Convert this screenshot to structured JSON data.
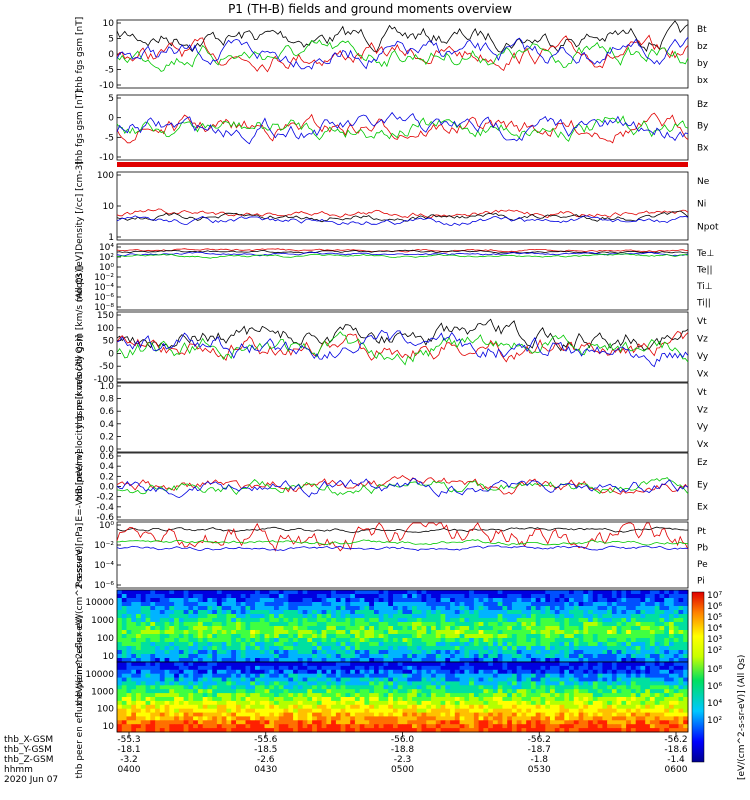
{
  "title": "P1 (TH-B) fields and ground moments overview",
  "colors": {
    "black": "#000000",
    "red": "#e00000",
    "green": "#00c800",
    "blue": "#0000e0"
  },
  "colorbar": {
    "label": "[eV/(cm^2-s-sr-eV)] (All Qs)"
  },
  "chart_data": [
    {
      "type": "line",
      "id": "fgs",
      "ylabel": "thb fgs gsm [nT]",
      "ylim": [
        -10,
        10
      ],
      "ticks": [
        "10",
        "5",
        "0",
        "-5",
        "-10"
      ],
      "grid": false,
      "legend_position": "right",
      "series": [
        {
          "name": "Bt",
          "color": "black"
        },
        {
          "name": "bz",
          "color": "red"
        },
        {
          "name": "by",
          "color": "green"
        },
        {
          "name": "bx",
          "color": "blue"
        }
      ]
    },
    {
      "type": "line",
      "id": "fgs2",
      "ylabel": "thb fgs gsm [nT]",
      "ylim": [
        -10,
        10
      ],
      "ticks": [
        "5",
        "0",
        "-5",
        "-10"
      ],
      "grid": false,
      "legend_position": "right",
      "series": [
        {
          "name": "Bz",
          "color": "red"
        },
        {
          "name": "By",
          "color": "green"
        },
        {
          "name": "Bx",
          "color": "blue"
        }
      ]
    },
    {
      "type": "line",
      "id": "density",
      "ylabel": "Density [/cc] [cm-3]",
      "scale": "log",
      "ylim": [
        0.01,
        200
      ],
      "ticks": [
        "100",
        "10",
        "1"
      ],
      "legend_position": "right",
      "series": [
        {
          "name": "Ne",
          "color": "red"
        },
        {
          "name": "Ni",
          "color": "black"
        },
        {
          "name": "Npot",
          "color": "blue"
        }
      ]
    },
    {
      "type": "line",
      "id": "temp",
      "ylabel": "moqt3 [eV]",
      "scale": "log",
      "ticks": [
        "10⁴",
        "10²",
        "10⁰",
        "10⁻²",
        "10⁻⁴",
        "10⁻⁶",
        "10⁻⁸"
      ],
      "legend_position": "right",
      "series": [
        {
          "name": "Te⊥",
          "color": "red"
        },
        {
          "name": "Te||",
          "color": "black"
        },
        {
          "name": "Ti⊥",
          "color": "blue"
        },
        {
          "name": "Ti||",
          "color": "green"
        }
      ]
    },
    {
      "type": "line",
      "id": "peir_vel",
      "ylabel": "thb peir velocity gsm [km/s (All Qs)]",
      "ylim": [
        -100,
        150
      ],
      "ticks": [
        "150",
        "100",
        "50",
        "0",
        "-50",
        "-100"
      ],
      "legend_position": "right",
      "series": [
        {
          "name": "Vt",
          "color": "black"
        },
        {
          "name": "Vz",
          "color": "red"
        },
        {
          "name": "Vy",
          "color": "green"
        },
        {
          "name": "Vx",
          "color": "blue"
        }
      ]
    },
    {
      "type": "line",
      "id": "peer_vel",
      "ylabel": "thb peer velocity gsm [km/s (All Qs)]",
      "ylim": [
        0,
        1
      ],
      "ticks": [
        "1.0",
        "0.8",
        "0.6",
        "0.4",
        "0.2",
        "0.0"
      ],
      "legend_position": "right",
      "series": [
        {
          "name": "Vt",
          "color": "black"
        },
        {
          "name": "Vz",
          "color": "red"
        },
        {
          "name": "Vy",
          "color": "green"
        },
        {
          "name": "Vx",
          "color": "blue"
        }
      ]
    },
    {
      "type": "line",
      "id": "efield",
      "ylabel": "E=-VxB [mV/m]",
      "ylim": [
        -0.6,
        0.6
      ],
      "ticks": [
        "0.6",
        "0.4",
        "0.2",
        "0.0",
        "-0.2",
        "-0.4",
        "-0.6"
      ],
      "legend_position": "right",
      "series": [
        {
          "name": "Ez",
          "color": "red"
        },
        {
          "name": "Ey",
          "color": "green"
        },
        {
          "name": "Ex",
          "color": "blue"
        }
      ]
    },
    {
      "type": "line",
      "id": "pressure",
      "ylabel": "Pressure [nPa]",
      "scale": "log",
      "ylim": [
        1e-06,
        1
      ],
      "ticks": [
        "10⁰",
        "10⁻²",
        "10⁻⁴",
        "10⁻⁶"
      ],
      "legend_position": "right",
      "series": [
        {
          "name": "Pt",
          "color": "black"
        },
        {
          "name": "Pb",
          "color": "red"
        },
        {
          "name": "Pe",
          "color": "green"
        },
        {
          "name": "Pi",
          "color": "blue"
        }
      ]
    },
    {
      "type": "heatmap",
      "id": "peir_en",
      "ylabel": "thb peir en eflux eV/(cm^2-s-sr-eV)",
      "scale": "log",
      "ticks": [
        "10000",
        "1000",
        "100",
        "10"
      ],
      "colorbar_ticks": [
        "10⁷",
        "10⁶",
        "10⁵",
        "10⁴",
        "10³",
        "10²"
      ]
    },
    {
      "type": "heatmap",
      "id": "peer_en",
      "ylabel": "thb peer en eflux eV/(cm^2-s-sr-eV)",
      "scale": "log",
      "ticks": [
        "10000",
        "1000",
        "100",
        "10"
      ],
      "colorbar_ticks": [
        "10⁸",
        "10⁶",
        "10⁴",
        "10²"
      ]
    }
  ],
  "x_axis": {
    "row_labels": [
      "thb_X-GSM",
      "thb_Y-GSM",
      "thb_Z-GSM",
      "hhmm",
      "2020 Jun 07"
    ],
    "columns": [
      {
        "x": "-55.3",
        "y": "-18.1",
        "z": "-3.2",
        "t": "0400"
      },
      {
        "x": "-55.6",
        "y": "-18.5",
        "z": "-2.6",
        "t": "0430"
      },
      {
        "x": "-56.0",
        "y": "-18.8",
        "z": "-2.3",
        "t": "0500"
      },
      {
        "x": "-56.2",
        "y": "-18.7",
        "z": "-1.8",
        "t": "0530"
      },
      {
        "x": "-56.2",
        "y": "-18.6",
        "z": "-1.4",
        "t": "0600"
      }
    ]
  }
}
